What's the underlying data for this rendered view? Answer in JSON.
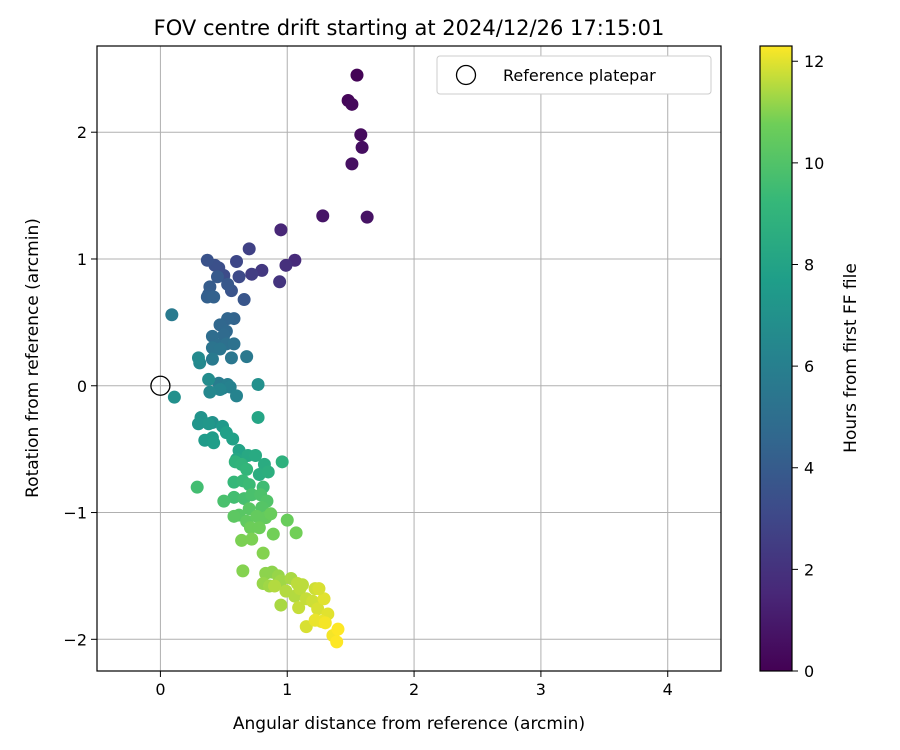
{
  "chart_data": {
    "type": "scatter",
    "title": "FOV centre drift starting at 2024/12/26 17:15:01",
    "xlabel": "Angular distance from reference (arcmin)",
    "ylabel": "Rotation from reference (arcmin)",
    "xlim": [
      -0.5,
      4.42
    ],
    "ylim": [
      -2.25,
      2.68
    ],
    "x_ticks": [
      0,
      1,
      2,
      3,
      4
    ],
    "y_ticks": [
      -2,
      -1,
      0,
      1,
      2
    ],
    "x_tick_labels": [
      "0",
      "1",
      "2",
      "3",
      "4"
    ],
    "y_tick_labels": [
      "−2",
      "−1",
      "0",
      "1",
      "2"
    ],
    "grid": true,
    "legend": {
      "placement": "top-right",
      "entries": [
        {
          "label": "Reference platepar",
          "marker": "open-circle"
        }
      ]
    },
    "colorbar": {
      "label": "Hours from first FF file",
      "colormap": "viridis",
      "range": [
        0,
        12.3
      ],
      "ticks": [
        0,
        2,
        4,
        6,
        8,
        10,
        12
      ],
      "tick_labels": [
        "0",
        "2",
        "4",
        "6",
        "8",
        "10",
        "12"
      ]
    },
    "reference_point": {
      "x": 0,
      "y": 0
    },
    "points": [
      [
        1.55,
        2.45,
        0.1
      ],
      [
        1.48,
        2.25,
        0.2
      ],
      [
        1.51,
        2.22,
        0.3
      ],
      [
        1.58,
        1.98,
        0.4
      ],
      [
        1.59,
        1.88,
        0.5
      ],
      [
        1.51,
        1.75,
        0.6
      ],
      [
        1.63,
        1.33,
        0.7
      ],
      [
        1.28,
        1.34,
        0.8
      ],
      [
        0.95,
        1.23,
        1.5
      ],
      [
        1.06,
        0.99,
        1.7
      ],
      [
        0.99,
        0.95,
        1.9
      ],
      [
        0.94,
        0.82,
        2.1
      ],
      [
        0.8,
        0.91,
        2.3
      ],
      [
        0.72,
        0.88,
        2.5
      ],
      [
        0.7,
        1.08,
        2.7
      ],
      [
        0.6,
        0.98,
        3.0
      ],
      [
        0.62,
        0.86,
        3.1
      ],
      [
        0.5,
        0.87,
        3.2
      ],
      [
        0.46,
        0.93,
        3.3
      ],
      [
        0.43,
        0.95,
        3.4
      ],
      [
        0.37,
        0.99,
        3.5
      ],
      [
        0.56,
        0.75,
        3.6
      ],
      [
        0.66,
        0.68,
        3.7
      ],
      [
        0.53,
        0.8,
        3.8
      ],
      [
        0.45,
        0.86,
        3.9
      ],
      [
        0.39,
        0.78,
        4.0
      ],
      [
        0.38,
        0.72,
        4.1
      ],
      [
        0.37,
        0.7,
        4.2
      ],
      [
        0.42,
        0.7,
        4.3
      ],
      [
        0.58,
        0.53,
        4.4
      ],
      [
        0.53,
        0.53,
        4.5
      ],
      [
        0.47,
        0.48,
        4.6
      ],
      [
        0.52,
        0.43,
        4.7
      ],
      [
        0.5,
        0.4,
        4.8
      ],
      [
        0.41,
        0.39,
        4.9
      ],
      [
        0.45,
        0.32,
        5.0
      ],
      [
        0.52,
        0.33,
        5.1
      ],
      [
        0.58,
        0.33,
        5.2
      ],
      [
        0.41,
        0.3,
        5.3
      ],
      [
        0.47,
        0.29,
        5.4
      ],
      [
        0.56,
        0.22,
        5.5
      ],
      [
        0.68,
        0.23,
        5.6
      ],
      [
        0.41,
        0.21,
        5.7
      ],
      [
        0.09,
        0.56,
        5.7
      ],
      [
        0.46,
        0.02,
        5.8
      ],
      [
        0.49,
        -0.02,
        5.9
      ],
      [
        0.53,
        0.01,
        6.0
      ],
      [
        0.55,
        -0.01,
        6.1
      ],
      [
        0.6,
        -0.08,
        6.2
      ],
      [
        0.47,
        -0.03,
        6.3
      ],
      [
        0.39,
        -0.05,
        6.4
      ],
      [
        0.31,
        0.18,
        6.5
      ],
      [
        0.3,
        0.22,
        6.6
      ],
      [
        0.38,
        0.05,
        6.7
      ],
      [
        0.77,
        0.01,
        6.9
      ],
      [
        0.11,
        -0.09,
        6.9
      ],
      [
        0.41,
        -0.29,
        7.0
      ],
      [
        0.32,
        -0.25,
        7.1
      ],
      [
        0.3,
        -0.3,
        7.2
      ],
      [
        0.38,
        -0.3,
        7.3
      ],
      [
        0.49,
        -0.32,
        7.4
      ],
      [
        0.35,
        -0.43,
        7.5
      ],
      [
        0.41,
        -0.41,
        7.6
      ],
      [
        0.42,
        -0.45,
        7.7
      ],
      [
        0.52,
        -0.37,
        7.8
      ],
      [
        0.57,
        -0.42,
        7.9
      ],
      [
        0.62,
        -0.51,
        8.0
      ],
      [
        0.77,
        -0.25,
        8.1
      ],
      [
        0.6,
        -0.58,
        8.2
      ],
      [
        0.69,
        -0.55,
        8.3
      ],
      [
        0.75,
        -0.55,
        8.4
      ],
      [
        0.82,
        -0.62,
        8.5
      ],
      [
        0.78,
        -0.7,
        8.6
      ],
      [
        0.85,
        -0.68,
        8.7
      ],
      [
        0.96,
        -0.6,
        8.8
      ],
      [
        0.59,
        -0.6,
        8.9
      ],
      [
        0.64,
        -0.62,
        9.0
      ],
      [
        0.68,
        -0.66,
        9.1
      ],
      [
        0.58,
        -0.76,
        9.2
      ],
      [
        0.65,
        -0.75,
        9.3
      ],
      [
        0.7,
        -0.78,
        9.4
      ],
      [
        0.81,
        -0.8,
        9.5
      ],
      [
        0.29,
        -0.8,
        9.6
      ],
      [
        0.58,
        -0.88,
        9.6
      ],
      [
        0.66,
        -0.89,
        9.7
      ],
      [
        0.5,
        -0.91,
        9.8
      ],
      [
        0.72,
        -0.86,
        9.8
      ],
      [
        0.79,
        -0.86,
        9.9
      ],
      [
        0.84,
        -0.91,
        10.0
      ],
      [
        0.8,
        -0.96,
        10.1
      ],
      [
        0.7,
        -0.97,
        10.2
      ],
      [
        0.62,
        -1.02,
        10.2
      ],
      [
        0.58,
        -1.03,
        10.3
      ],
      [
        0.68,
        -1.07,
        10.4
      ],
      [
        0.76,
        -1.03,
        10.5
      ],
      [
        0.83,
        -1.04,
        10.5
      ],
      [
        0.87,
        -1.01,
        10.6
      ],
      [
        1.0,
        -1.06,
        10.6
      ],
      [
        0.71,
        -1.12,
        10.7
      ],
      [
        0.78,
        -1.12,
        10.7
      ],
      [
        0.89,
        -1.17,
        10.8
      ],
      [
        1.07,
        -1.16,
        10.8
      ],
      [
        0.64,
        -1.22,
        10.9
      ],
      [
        0.72,
        -1.21,
        10.9
      ],
      [
        0.81,
        -1.32,
        11.0
      ],
      [
        0.65,
        -1.46,
        11.0
      ],
      [
        0.83,
        -1.48,
        11.1
      ],
      [
        0.88,
        -1.47,
        11.1
      ],
      [
        0.93,
        -1.5,
        11.2
      ],
      [
        0.81,
        -1.56,
        11.2
      ],
      [
        0.86,
        -1.58,
        11.3
      ],
      [
        0.95,
        -1.54,
        11.3
      ],
      [
        1.03,
        -1.52,
        11.4
      ],
      [
        0.95,
        -1.73,
        11.4
      ],
      [
        0.99,
        -1.62,
        11.5
      ],
      [
        1.06,
        -1.66,
        11.5
      ],
      [
        1.08,
        -1.56,
        11.6
      ],
      [
        1.1,
        -1.6,
        11.6
      ],
      [
        1.09,
        -1.75,
        11.7
      ],
      [
        1.15,
        -1.68,
        11.7
      ],
      [
        1.2,
        -1.7,
        11.8
      ],
      [
        1.22,
        -1.6,
        11.8
      ],
      [
        1.15,
        -1.9,
        11.9
      ],
      [
        1.24,
        -1.76,
        11.9
      ],
      [
        1.29,
        -1.68,
        12.0
      ],
      [
        1.32,
        -1.8,
        12.0
      ],
      [
        1.22,
        -1.85,
        12.1
      ],
      [
        1.27,
        -1.86,
        12.1
      ],
      [
        1.3,
        -1.87,
        12.2
      ],
      [
        1.36,
        -1.97,
        12.2
      ],
      [
        1.39,
        -2.02,
        12.3
      ],
      [
        1.4,
        -1.92,
        12.3
      ],
      [
        1.12,
        -1.57,
        11.6
      ],
      [
        0.9,
        -1.58,
        11.5
      ],
      [
        1.25,
        -1.6,
        11.9
      ]
    ]
  }
}
